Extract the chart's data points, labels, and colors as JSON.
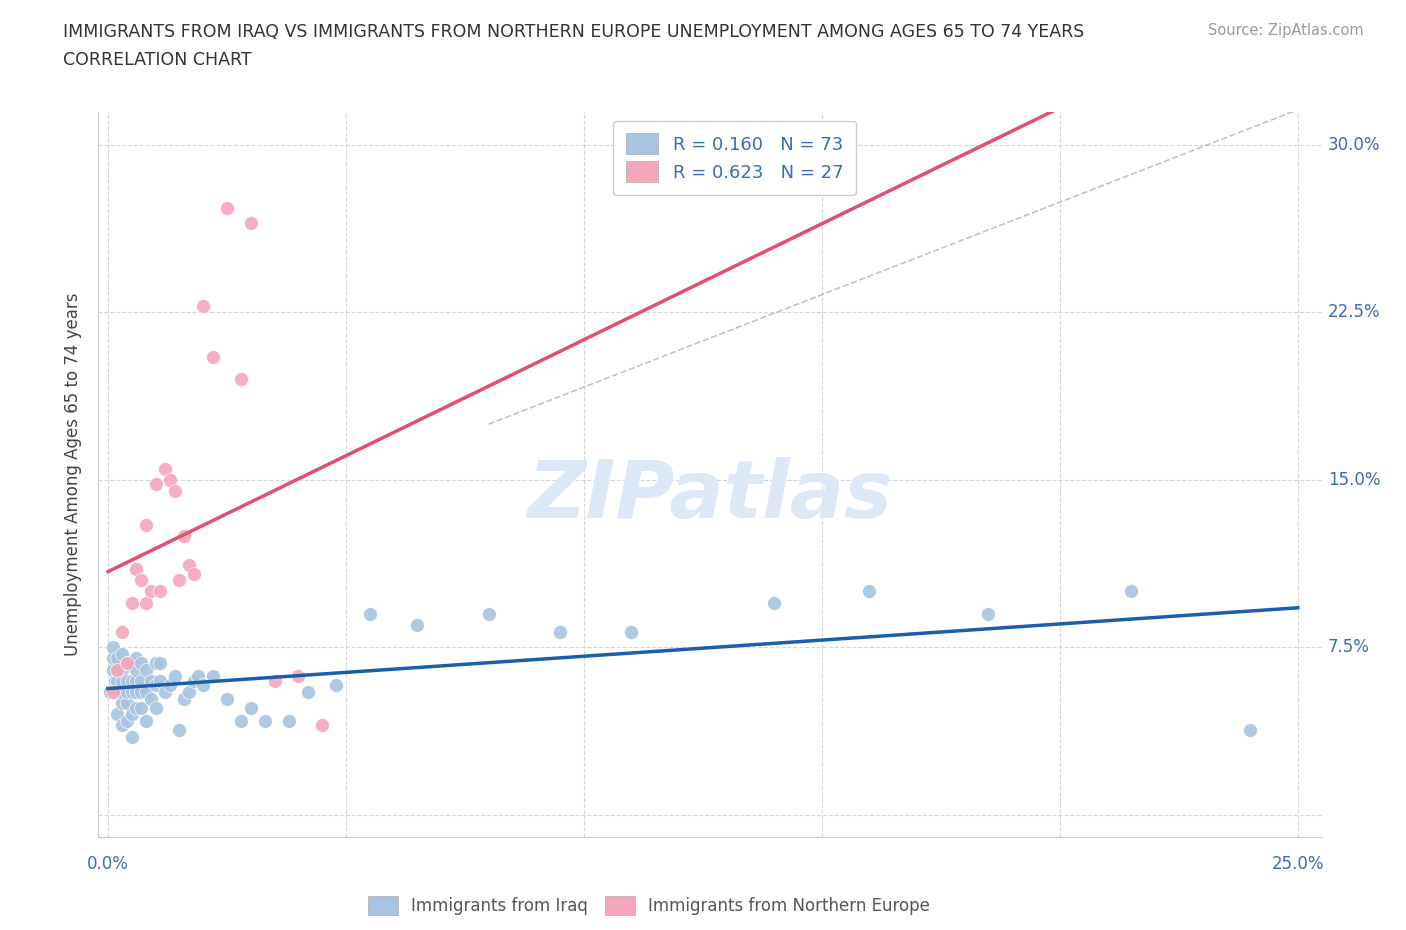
{
  "title_line1": "IMMIGRANTS FROM IRAQ VS IMMIGRANTS FROM NORTHERN EUROPE UNEMPLOYMENT AMONG AGES 65 TO 74 YEARS",
  "title_line2": "CORRELATION CHART",
  "source_text": "Source: ZipAtlas.com",
  "ylabel": "Unemployment Among Ages 65 to 74 years",
  "xlim": [
    -0.002,
    0.255
  ],
  "ylim": [
    -0.01,
    0.315
  ],
  "xticks": [
    0.0,
    0.05,
    0.1,
    0.15,
    0.2,
    0.25
  ],
  "yticks": [
    0.0,
    0.075,
    0.15,
    0.225,
    0.3
  ],
  "xticklabels": [
    "0.0%",
    "",
    "",
    "",
    "",
    "25.0%"
  ],
  "yticklabels": [
    "",
    "7.5%",
    "15.0%",
    "22.5%",
    "30.0%"
  ],
  "iraq_R": 0.16,
  "iraq_N": 73,
  "northern_R": 0.623,
  "northern_N": 27,
  "iraq_color": "#a8c4e0",
  "northern_color": "#f4a7b9",
  "iraq_line_color": "#1a5fa8",
  "northern_line_color": "#e05070",
  "watermark_color": "#dce8f5",
  "iraq_x": [
    0.0005,
    0.001,
    0.001,
    0.001,
    0.0015,
    0.0015,
    0.002,
    0.002,
    0.002,
    0.002,
    0.002,
    0.003,
    0.003,
    0.003,
    0.003,
    0.003,
    0.003,
    0.004,
    0.004,
    0.004,
    0.004,
    0.004,
    0.005,
    0.005,
    0.005,
    0.005,
    0.005,
    0.006,
    0.006,
    0.006,
    0.006,
    0.006,
    0.007,
    0.007,
    0.007,
    0.007,
    0.008,
    0.008,
    0.008,
    0.009,
    0.009,
    0.01,
    0.01,
    0.01,
    0.011,
    0.011,
    0.012,
    0.013,
    0.014,
    0.015,
    0.016,
    0.017,
    0.018,
    0.019,
    0.02,
    0.022,
    0.025,
    0.028,
    0.03,
    0.033,
    0.038,
    0.042,
    0.048,
    0.055,
    0.065,
    0.08,
    0.095,
    0.11,
    0.14,
    0.16,
    0.185,
    0.215,
    0.24
  ],
  "iraq_y": [
    0.055,
    0.065,
    0.07,
    0.075,
    0.055,
    0.06,
    0.045,
    0.055,
    0.06,
    0.065,
    0.07,
    0.04,
    0.05,
    0.055,
    0.06,
    0.065,
    0.072,
    0.042,
    0.05,
    0.055,
    0.06,
    0.068,
    0.035,
    0.045,
    0.055,
    0.06,
    0.068,
    0.048,
    0.055,
    0.06,
    0.065,
    0.07,
    0.048,
    0.055,
    0.06,
    0.068,
    0.042,
    0.055,
    0.065,
    0.052,
    0.06,
    0.048,
    0.058,
    0.068,
    0.06,
    0.068,
    0.055,
    0.058,
    0.062,
    0.038,
    0.052,
    0.055,
    0.06,
    0.062,
    0.058,
    0.062,
    0.052,
    0.042,
    0.048,
    0.042,
    0.042,
    0.055,
    0.058,
    0.09,
    0.085,
    0.09,
    0.082,
    0.082,
    0.095,
    0.1,
    0.09,
    0.1,
    0.038
  ],
  "northern_x": [
    0.001,
    0.002,
    0.003,
    0.004,
    0.005,
    0.006,
    0.007,
    0.008,
    0.008,
    0.009,
    0.01,
    0.011,
    0.012,
    0.013,
    0.014,
    0.015,
    0.016,
    0.017,
    0.018,
    0.02,
    0.022,
    0.025,
    0.028,
    0.03,
    0.035,
    0.04,
    0.045
  ],
  "northern_y": [
    0.055,
    0.065,
    0.082,
    0.068,
    0.095,
    0.11,
    0.105,
    0.095,
    0.13,
    0.1,
    0.148,
    0.1,
    0.155,
    0.15,
    0.145,
    0.105,
    0.125,
    0.112,
    0.108,
    0.228,
    0.205,
    0.272,
    0.195,
    0.265,
    0.06,
    0.062,
    0.04
  ],
  "ref_line_x": [
    0.08,
    0.255
  ],
  "ref_line_y": [
    0.175,
    0.32
  ]
}
